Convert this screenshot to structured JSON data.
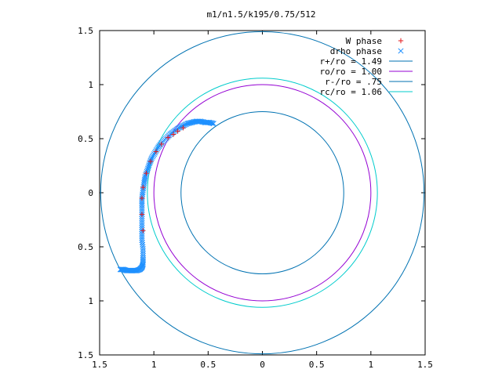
{
  "chart_data": {
    "type": "scatter",
    "title": "m1/n1.5/k195/0.75/512",
    "xlabel": "",
    "ylabel": "",
    "xlim": [
      -1.5,
      1.5
    ],
    "ylim": [
      -1.5,
      1.5
    ],
    "x_ticks": [
      -1.5,
      -1,
      -0.5,
      0,
      0.5,
      1,
      1.5
    ],
    "y_ticks": [
      -1.5,
      -1,
      -0.5,
      0,
      0.5,
      1,
      1.5
    ],
    "x_tick_labels": [
      "1.5",
      "1",
      "0.5",
      "0",
      "0.5",
      "1",
      "1.5"
    ],
    "y_tick_labels": [
      "1.5",
      "1",
      "0.5",
      "0",
      "0.5",
      "1",
      "1.5"
    ],
    "grid": false,
    "legend_position": "top-right",
    "circles": [
      {
        "name": "r+/ro = 1.49",
        "radius": 1.49,
        "color": "#0072b2"
      },
      {
        "name": "ro/ro = 1.00",
        "radius": 1.0,
        "color": "#9400d3"
      },
      {
        "name": "r-/ro = .75",
        "radius": 0.75,
        "color": "#0072b2"
      },
      {
        "name": "rc/ro = 1.06",
        "radius": 1.06,
        "color": "#00cccc"
      }
    ],
    "series": [
      {
        "name": "W phase",
        "marker": "+",
        "color": "#e41a1c",
        "points": [
          [
            -1.1,
            -0.35
          ],
          [
            -1.11,
            -0.2
          ],
          [
            -1.11,
            -0.05
          ],
          [
            -1.1,
            0.05
          ],
          [
            -1.07,
            0.18
          ],
          [
            -1.03,
            0.29
          ],
          [
            -0.98,
            0.38
          ],
          [
            -0.93,
            0.45
          ],
          [
            -0.87,
            0.51
          ],
          [
            -0.82,
            0.54
          ],
          [
            -0.78,
            0.57
          ],
          [
            -0.73,
            0.6
          ]
        ]
      },
      {
        "name": "drho phase",
        "marker": "x",
        "color": "#1e90ff",
        "points": [
          [
            -1.31,
            -0.71
          ],
          [
            -1.28,
            -0.71
          ],
          [
            -1.25,
            -0.72
          ],
          [
            -1.22,
            -0.72
          ],
          [
            -1.19,
            -0.72
          ],
          [
            -1.16,
            -0.72
          ],
          [
            -1.13,
            -0.71
          ],
          [
            -1.11,
            -0.69
          ],
          [
            -1.1,
            -0.66
          ],
          [
            -1.1,
            -0.6
          ],
          [
            -1.1,
            -0.52
          ],
          [
            -1.11,
            -0.44
          ],
          [
            -1.11,
            -0.36
          ],
          [
            -1.11,
            -0.28
          ],
          [
            -1.11,
            -0.2
          ],
          [
            -1.11,
            -0.12
          ],
          [
            -1.11,
            -0.05
          ],
          [
            -1.1,
            0.02
          ],
          [
            -1.09,
            0.09
          ],
          [
            -1.08,
            0.15
          ],
          [
            -1.06,
            0.21
          ],
          [
            -1.04,
            0.27
          ],
          [
            -1.02,
            0.32
          ],
          [
            -0.99,
            0.37
          ],
          [
            -0.96,
            0.42
          ],
          [
            -0.93,
            0.46
          ],
          [
            -0.89,
            0.5
          ],
          [
            -0.85,
            0.54
          ],
          [
            -0.81,
            0.57
          ],
          [
            -0.77,
            0.6
          ],
          [
            -0.73,
            0.62
          ],
          [
            -0.69,
            0.64
          ],
          [
            -0.65,
            0.65
          ],
          [
            -0.61,
            0.66
          ],
          [
            -0.57,
            0.66
          ],
          [
            -0.53,
            0.65
          ],
          [
            -0.49,
            0.65
          ],
          [
            -0.45,
            0.64
          ]
        ]
      }
    ]
  }
}
